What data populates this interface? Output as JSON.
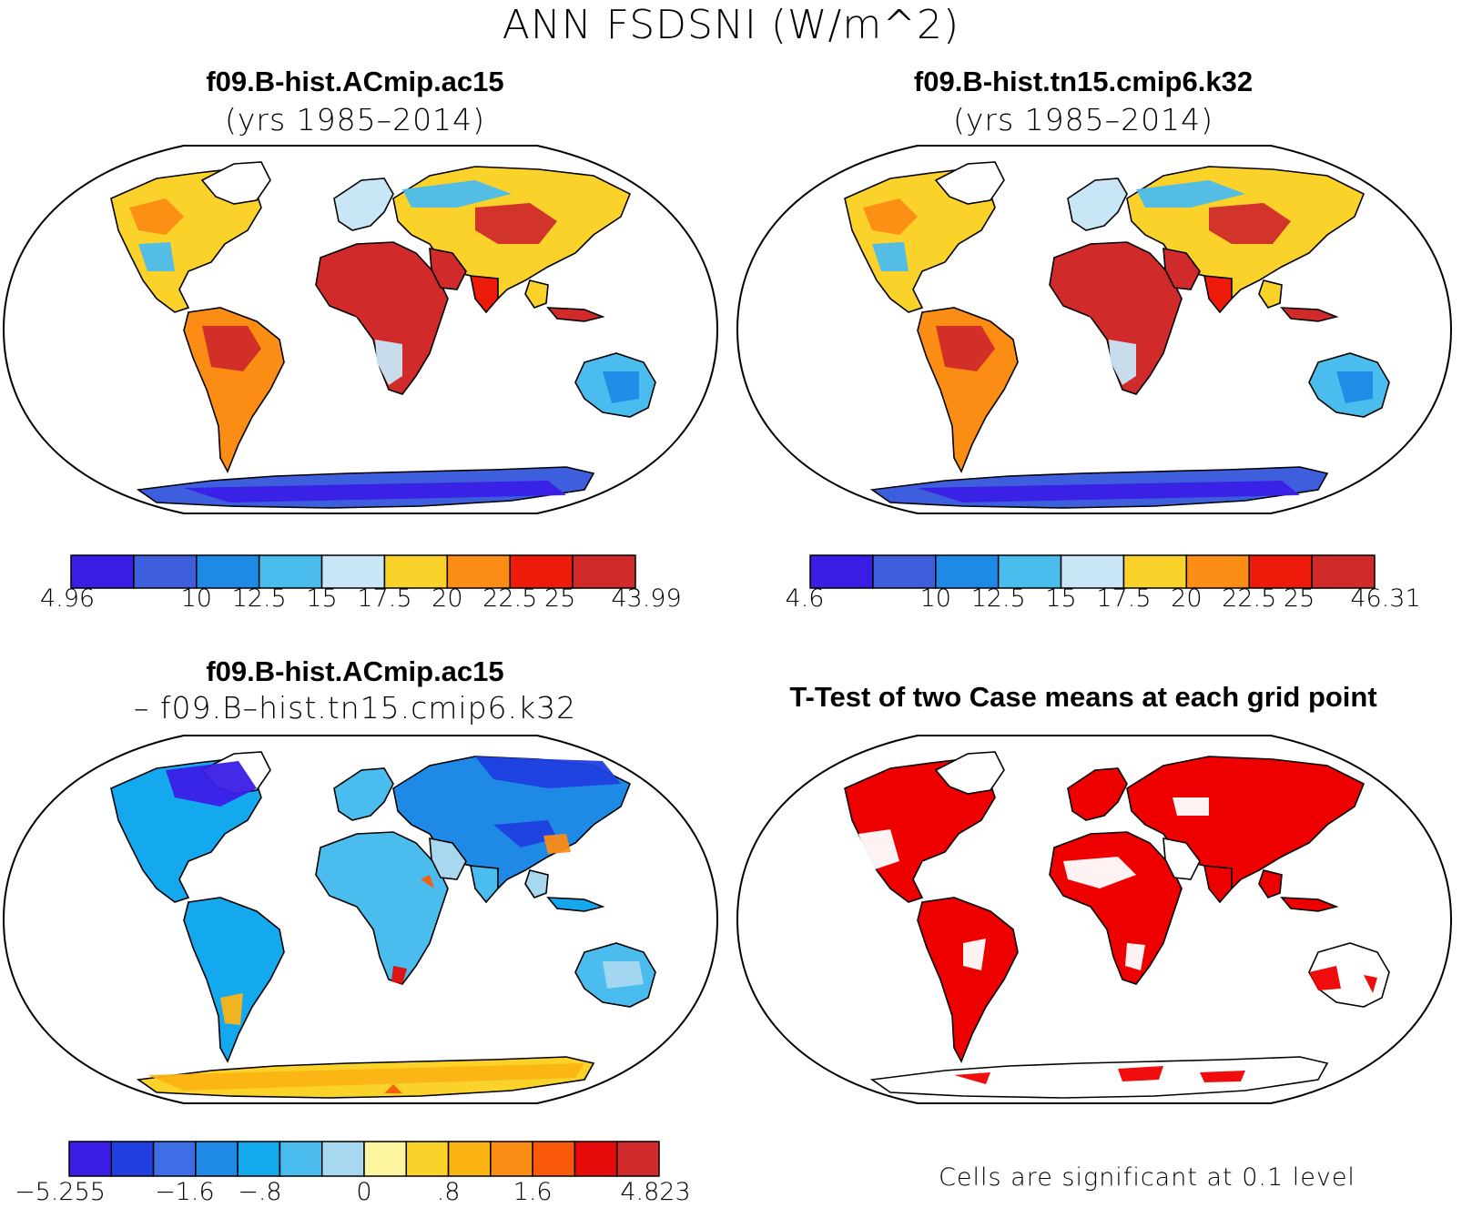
{
  "main_title": "ANN FSDSNI (W/m^2)",
  "panels": [
    {
      "title": "f09.B-hist.ACmip.ac15",
      "subtitle": "(yrs 1985–2014)"
    },
    {
      "title": "f09.B-hist.tn15.cmip6.k32",
      "subtitle": "(yrs 1985–2014)"
    },
    {
      "title": "f09.B-hist.ACmip.ac15",
      "subtitle": "– f09.B–hist.tn15.cmip6.k32"
    },
    {
      "title": "T-Test of two Case means at each grid point",
      "subtitle": ""
    }
  ],
  "footnote": "Cells are significant at 0.1 level",
  "chart_data": [
    {
      "type": "heatmap",
      "title": "f09.B-hist.ACmip.ac15",
      "subtitle": "(yrs 1985–2014)",
      "projection": "Robinson world map",
      "colorbar": {
        "tick_labels": [
          "4.96",
          "10",
          "12.5",
          "15",
          "17.5",
          "20",
          "22.5",
          "25",
          "43.99"
        ],
        "colors": [
          "#3a1ee6",
          "#3d5fde",
          "#1e8ae6",
          "#4bbcee",
          "#c8e6f5",
          "#fbd22a",
          "#fb8c14",
          "#ee1a0a",
          "#d02a2a"
        ]
      }
    },
    {
      "type": "heatmap",
      "title": "f09.B-hist.tn15.cmip6.k32",
      "subtitle": "(yrs 1985–2014)",
      "projection": "Robinson world map",
      "colorbar": {
        "tick_labels": [
          "4.6",
          "10",
          "12.5",
          "15",
          "17.5",
          "20",
          "22.5",
          "25",
          "46.31"
        ],
        "colors": [
          "#3a1ee6",
          "#3d5fde",
          "#1e8ae6",
          "#4bbcee",
          "#c8e6f5",
          "#fbd22a",
          "#fb8c14",
          "#ee1a0a",
          "#d02a2a"
        ]
      }
    },
    {
      "type": "heatmap",
      "title": "f09.B-hist.ACmip.ac15",
      "subtitle": "– f09.B–hist.tn15.cmip6.k32",
      "projection": "Robinson world map",
      "colorbar": {
        "tick_labels": [
          "−5.255",
          "−1.6",
          "−.8",
          "0",
          ".8",
          "1.6",
          "4.823"
        ],
        "colors": [
          "#3a1ee6",
          "#1f3fe0",
          "#3d6ee6",
          "#1e8ae6",
          "#14a8ee",
          "#4bbcee",
          "#a8d8f0",
          "#fbf5a0",
          "#fbd22a",
          "#fbb414",
          "#fb8c14",
          "#fb5a0a",
          "#e60a0a",
          "#d02a2a"
        ]
      }
    },
    {
      "type": "heatmap",
      "title": "T-Test of two Case means at each grid point",
      "projection": "Robinson world map",
      "significant_color": "#ee0000",
      "note": "Cells are significant at 0.1 level"
    }
  ]
}
